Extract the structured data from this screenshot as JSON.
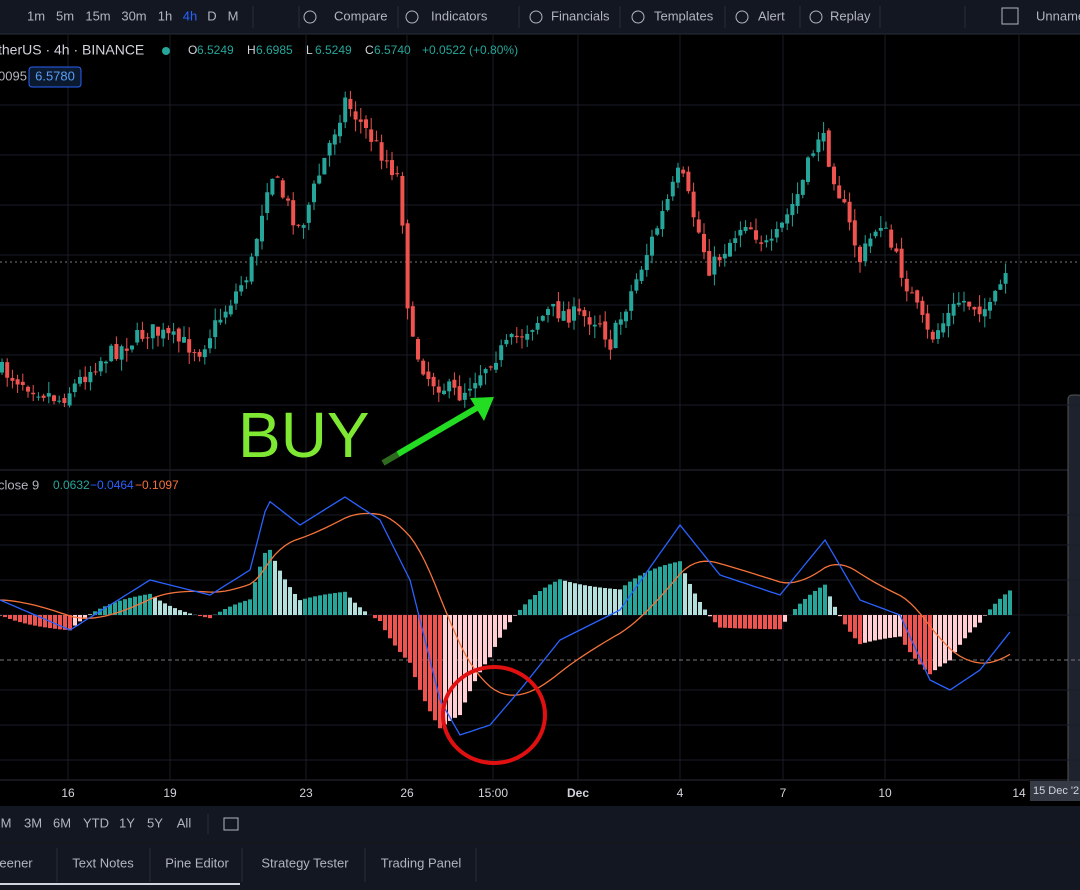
{
  "toolbar": {
    "intervals": [
      "1m",
      "5m",
      "15m",
      "30m",
      "1h",
      "4h",
      "D",
      "M"
    ],
    "buttons": [
      "Compare",
      "Indicators",
      "Financials",
      "Templates",
      "Alert",
      "Replay"
    ],
    "layout_name": "Unnamed"
  },
  "legend": {
    "symbol": "therUS · 4h · BINANCE",
    "ohlc": [
      {
        "label": "O",
        "value": "6.5249"
      },
      {
        "label": "H",
        "value": "6.6985"
      },
      {
        "label": "L",
        "value": "6.5249"
      },
      {
        "label": "C",
        "value": "6.5740"
      }
    ],
    "change": "+0.0522 (+0.80%)",
    "indicator": "0095",
    "indicator_value": "6.5780"
  },
  "annotation": "BUY",
  "macd": {
    "label": "close 9",
    "values": [
      "0.0632",
      "−0.0464",
      "−0.1097"
    ]
  },
  "x_axis": [
    "16",
    "19",
    "23",
    "26",
    "15:00",
    "Dec",
    "4",
    "7",
    "10",
    "14"
  ],
  "cursor_date": "15 Dec '2",
  "ranges": [
    "M",
    "3M",
    "6M",
    "YTD",
    "1Y",
    "5Y",
    "All"
  ],
  "tabs": [
    "eener",
    "Text Notes",
    "Pine Editor",
    "Strategy Tester",
    "Trading Panel"
  ]
}
